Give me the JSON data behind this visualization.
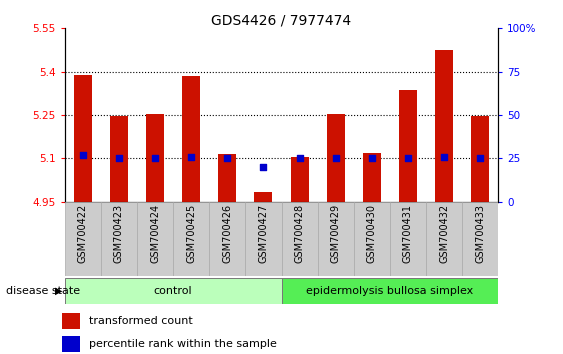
{
  "title": "GDS4426 / 7977474",
  "samples": [
    "GSM700422",
    "GSM700423",
    "GSM700424",
    "GSM700425",
    "GSM700426",
    "GSM700427",
    "GSM700428",
    "GSM700429",
    "GSM700430",
    "GSM700431",
    "GSM700432",
    "GSM700433"
  ],
  "transformed_count": [
    5.39,
    5.245,
    5.255,
    5.385,
    5.115,
    4.985,
    5.105,
    5.255,
    5.12,
    5.335,
    5.475,
    5.245
  ],
  "percentile_rank": [
    27,
    25,
    25,
    26,
    25,
    20,
    25,
    25,
    25,
    25,
    26,
    25
  ],
  "ylim_left": [
    4.95,
    5.55
  ],
  "ylim_right": [
    0,
    100
  ],
  "yticks_left": [
    4.95,
    5.1,
    5.25,
    5.4,
    5.55
  ],
  "yticks_right": [
    0,
    25,
    50,
    75,
    100
  ],
  "ytick_labels_left": [
    "4.95",
    "5.1",
    "5.25",
    "5.4",
    "5.55"
  ],
  "ytick_labels_right": [
    "0",
    "25",
    "50",
    "75",
    "100%"
  ],
  "hlines": [
    5.1,
    5.25,
    5.4
  ],
  "bar_color": "#cc1100",
  "dot_color": "#0000cc",
  "bar_bottom": 4.95,
  "control_samples": 6,
  "control_label": "control",
  "disease_label": "epidermolysis bullosa simplex",
  "legend_bar": "transformed count",
  "legend_dot": "percentile rank within the sample",
  "xlabel_left": "disease state",
  "title_fontsize": 10,
  "tick_fontsize": 7.5,
  "label_fontsize": 8,
  "control_color": "#bbffbb",
  "disease_color": "#55ee55",
  "group_label_fontsize": 8,
  "xticklabel_fontsize": 7,
  "xticklabel_bg": "#cccccc"
}
